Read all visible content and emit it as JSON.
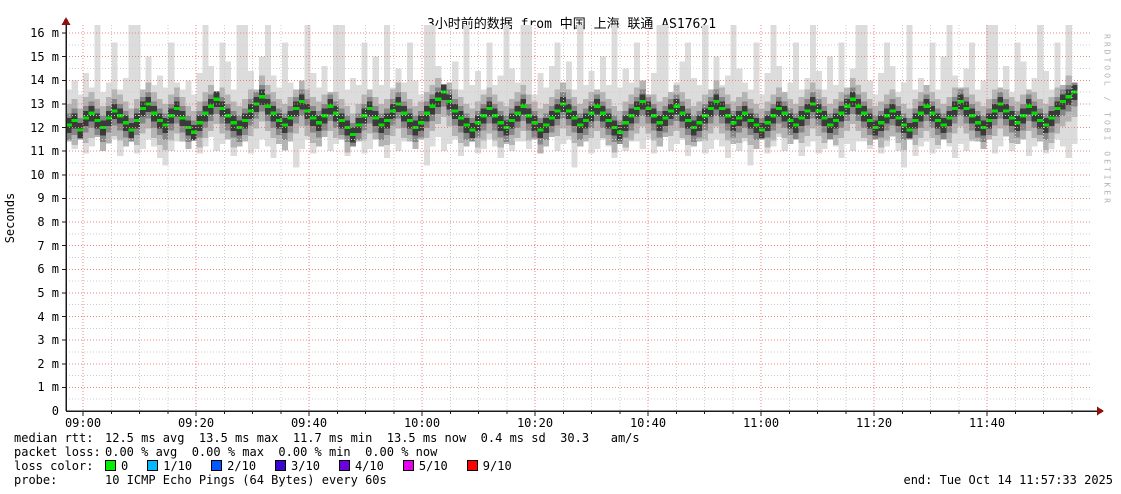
{
  "title": "3小时前的数据 from 中国 上海 联通 AS17621",
  "watermark": "RRDTOOL / TOBI OETIKER",
  "y_axis_label": "Seconds",
  "footer": {
    "rows": [
      {
        "label": "median rtt: ",
        "value": "12.5 ms avg  13.5 ms max  11.7 ms min  13.5 ms now  0.4 ms sd  30.3   am/s"
      },
      {
        "label": "packet loss:",
        "value": "0.00 % avg  0.00 % max  0.00 % min  0.00 % now"
      }
    ],
    "loss_color_label": "loss color: ",
    "loss_colors": [
      {
        "label": "0",
        "color": "#00f000"
      },
      {
        "label": "1/10",
        "color": "#00b8ff"
      },
      {
        "label": "2/10",
        "color": "#0059ff"
      },
      {
        "label": "3/10",
        "color": "#3a04d1"
      },
      {
        "label": "4/10",
        "color": "#6e00e0"
      },
      {
        "label": "5/10",
        "color": "#e500f0"
      },
      {
        "label": "9/10",
        "color": "#ff0000"
      }
    ],
    "probe_label": "probe:      ",
    "probe_value": "10 ICMP Echo Pings (64 Bytes) every 60s",
    "end_text": "end: Tue Oct 14 11:57:33 2025"
  },
  "chart_data": {
    "type": "smoke-latency (smokeping/rrdtool)",
    "title": "3小时前的数据 from 中国 上海 联通 AS17621",
    "ylabel": "Seconds",
    "y_unit": "ms (ticks shown as m)",
    "ylim": [
      0,
      16.4
    ],
    "x_start": "08:57",
    "x_end": "11:57",
    "step_minutes": 1,
    "y_tick_labels": [
      "16 m",
      "15 m",
      "14 m",
      "13 m",
      "12 m",
      "11 m",
      "10 m",
      "9 m",
      "8 m",
      "7 m",
      "6 m",
      "5 m",
      "4 m",
      "3 m",
      "2 m",
      "1 m",
      "0"
    ],
    "y_tick_values": [
      16,
      15,
      14,
      13,
      12,
      11,
      10,
      9,
      8,
      7,
      6,
      5,
      4,
      3,
      2,
      1,
      0
    ],
    "x_tick_labels": [
      "09:00",
      "09:20",
      "09:40",
      "10:00",
      "10:20",
      "10:40",
      "11:00",
      "11:20",
      "11:40"
    ],
    "grid": {
      "x_major_minutes": 20,
      "x_minor_minutes": 5,
      "y_major_ms": 1,
      "y_minor_ms": 0.5,
      "major_color": "#f08080",
      "minor_color": "#cccccc"
    },
    "median_color": "#00e000",
    "smoke_colors": [
      "#dcdcdc",
      "#b4b4b4",
      "#868686",
      "#3a3a3a"
    ],
    "axis_color": "#1a1a1a",
    "arrow_color": "#8f1010",
    "stats": {
      "avg_ms": 12.5,
      "max_ms": 13.5,
      "min_ms": 11.7,
      "now_ms": 13.5,
      "sd_ms": 0.4
    },
    "median_ms": [
      12.1,
      12.3,
      11.9,
      12.4,
      12.6,
      12.3,
      12.0,
      12.4,
      12.7,
      12.5,
      12.2,
      11.9,
      12.3,
      12.8,
      13.0,
      12.6,
      12.3,
      12.1,
      12.5,
      12.8,
      12.4,
      12.0,
      11.8,
      12.2,
      12.6,
      12.9,
      13.2,
      12.8,
      12.5,
      12.2,
      12.0,
      12.3,
      12.7,
      13.0,
      13.3,
      12.9,
      12.6,
      12.3,
      12.1,
      12.4,
      12.8,
      13.1,
      12.7,
      12.4,
      12.2,
      12.5,
      12.9,
      12.6,
      12.3,
      12.0,
      11.7,
      12.1,
      12.5,
      12.8,
      12.4,
      12.1,
      12.3,
      12.7,
      13.0,
      12.6,
      12.3,
      12.0,
      12.2,
      12.6,
      12.9,
      13.2,
      13.5,
      13.1,
      12.7,
      12.4,
      12.1,
      11.9,
      12.2,
      12.5,
      12.8,
      12.5,
      12.2,
      12.0,
      12.3,
      12.6,
      12.9,
      12.5,
      12.2,
      11.9,
      12.1,
      12.4,
      12.7,
      13.0,
      12.7,
      12.4,
      12.1,
      12.3,
      12.6,
      12.9,
      12.6,
      12.3,
      12.0,
      11.8,
      12.2,
      12.5,
      12.8,
      13.1,
      12.8,
      12.5,
      12.2,
      12.4,
      12.7,
      12.9,
      12.6,
      12.3,
      12.0,
      12.2,
      12.5,
      12.8,
      13.1,
      12.8,
      12.5,
      12.2,
      12.4,
      12.6,
      12.3,
      12.1,
      11.9,
      12.2,
      12.5,
      12.8,
      12.6,
      12.3,
      12.1,
      12.4,
      12.7,
      13.0,
      12.7,
      12.4,
      12.1,
      12.3,
      12.6,
      12.9,
      13.2,
      12.9,
      12.6,
      12.3,
      12.0,
      12.2,
      12.5,
      12.7,
      12.4,
      12.1,
      11.9,
      12.3,
      12.6,
      12.9,
      12.6,
      12.3,
      12.1,
      12.4,
      12.8,
      13.1,
      12.8,
      12.5,
      12.2,
      12.0,
      12.3,
      12.7,
      13.0,
      12.7,
      12.4,
      12.2,
      12.5,
      12.9,
      12.6,
      12.3,
      12.1,
      12.4,
      12.8,
      13.1,
      13.3,
      13.5
    ],
    "smoke_low_ms": [
      11.4,
      11.1,
      11.5,
      10.9,
      11.2,
      11.6,
      11.0,
      11.3,
      11.5,
      10.8,
      11.2,
      11.4,
      10.9,
      11.1,
      11.5,
      11.2,
      10.7,
      10.4,
      11.0,
      11.4,
      11.4,
      11.1,
      11.5,
      10.9,
      11.2,
      11.6,
      11.0,
      11.3,
      11.5,
      10.8,
      11.2,
      11.4,
      10.9,
      11.1,
      11.5,
      11.2,
      10.7,
      11.3,
      11.0,
      11.4,
      10.3,
      11.1,
      11.5,
      10.9,
      11.2,
      11.6,
      11.0,
      11.3,
      11.5,
      10.8,
      11.2,
      11.4,
      10.9,
      11.1,
      11.5,
      11.2,
      10.7,
      11.3,
      11.0,
      11.4,
      11.4,
      11.1,
      11.5,
      10.4,
      11.2,
      11.6,
      11.0,
      11.3,
      11.5,
      10.8,
      11.2,
      11.4,
      10.9,
      11.1,
      11.5,
      11.2,
      10.7,
      11.3,
      11.0,
      11.4,
      11.4,
      11.1,
      11.5,
      10.9,
      11.2,
      11.6,
      11.0,
      11.3,
      11.5,
      10.3,
      11.2,
      11.4,
      10.9,
      11.1,
      11.5,
      11.2,
      10.7,
      11.3,
      11.0,
      11.4,
      11.4,
      11.1,
      11.5,
      10.9,
      11.2,
      11.6,
      11.0,
      11.3,
      11.5,
      10.8,
      11.2,
      11.4,
      10.9,
      11.1,
      11.5,
      11.2,
      10.7,
      11.3,
      11.0,
      11.4,
      10.4,
      11.1,
      11.5,
      10.9,
      11.2,
      11.6,
      11.0,
      11.3,
      11.5,
      10.8,
      11.2,
      11.4,
      10.9,
      11.1,
      11.5,
      11.2,
      10.7,
      11.3,
      11.0,
      11.4,
      11.4,
      11.1,
      11.5,
      10.9,
      11.2,
      11.6,
      11.0,
      10.3,
      11.5,
      10.8,
      11.2,
      11.4,
      10.9,
      11.1,
      11.5,
      11.2,
      10.7,
      11.3,
      11.0,
      11.4,
      11.4,
      11.1,
      11.5,
      10.9,
      11.2,
      11.6,
      11.0,
      11.3,
      11.5,
      10.8,
      11.2,
      11.4,
      10.9,
      11.1,
      11.5,
      11.2,
      10.7,
      11.3
    ],
    "smoke_high_ms": [
      13.6,
      14.0,
      13.4,
      14.3,
      13.7,
      16.5,
      13.5,
      13.9,
      15.6,
      13.6,
      14.1,
      16.5,
      16.5,
      13.6,
      15.0,
      13.8,
      14.2,
      13.7,
      15.6,
      13.9,
      13.6,
      14.0,
      13.4,
      14.3,
      16.5,
      14.6,
      13.5,
      15.6,
      14.8,
      13.6,
      16.5,
      16.5,
      14.4,
      13.6,
      15.0,
      16.5,
      14.2,
      13.7,
      15.6,
      13.9,
      13.6,
      14.0,
      16.5,
      14.3,
      13.7,
      14.6,
      13.5,
      16.5,
      16.5,
      13.6,
      14.1,
      13.8,
      15.6,
      13.6,
      15.0,
      13.8,
      16.5,
      13.7,
      14.5,
      13.9,
      15.6,
      14.0,
      13.4,
      16.5,
      16.5,
      14.6,
      13.5,
      13.9,
      14.8,
      13.6,
      16.5,
      13.8,
      14.4,
      13.6,
      15.6,
      13.8,
      14.2,
      16.5,
      14.5,
      13.9,
      16.5,
      16.5,
      13.4,
      14.3,
      13.7,
      14.6,
      15.6,
      13.9,
      14.8,
      13.6,
      16.5,
      13.8,
      14.4,
      13.6,
      15.0,
      13.8,
      16.5,
      13.7,
      14.5,
      13.9,
      15.6,
      14.0,
      13.4,
      14.3,
      16.5,
      16.5,
      13.5,
      13.9,
      14.8,
      15.6,
      14.1,
      13.8,
      16.5,
      13.6,
      15.0,
      13.8,
      14.2,
      16.5,
      14.5,
      13.9,
      13.6,
      15.6,
      13.4,
      14.3,
      16.5,
      14.6,
      13.5,
      13.9,
      15.6,
      13.6,
      14.1,
      16.5,
      14.4,
      13.6,
      15.0,
      13.8,
      15.6,
      13.7,
      14.5,
      16.5,
      16.5,
      14.0,
      13.4,
      14.3,
      15.6,
      14.6,
      13.5,
      13.9,
      16.5,
      13.6,
      14.1,
      13.8,
      15.6,
      13.6,
      15.0,
      16.5,
      14.2,
      13.7,
      14.5,
      15.6,
      13.6,
      14.0,
      16.5,
      16.5,
      13.7,
      14.6,
      13.5,
      15.6,
      14.8,
      13.6,
      14.1,
      16.5,
      14.4,
      13.6,
      15.6,
      13.8,
      16.5,
      13.9
    ]
  }
}
